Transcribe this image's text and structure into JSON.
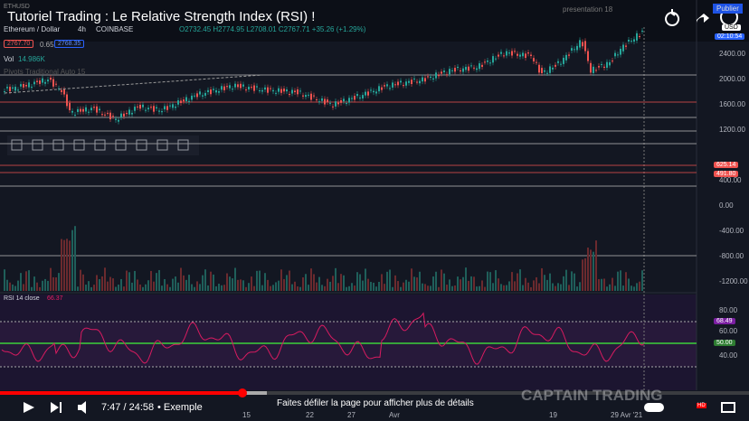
{
  "video": {
    "title": "Tutoriel Trading : Le Relative Strength Index (RSI) !",
    "header_tab": "presentation 18",
    "publish": "Publier",
    "time": "7:47 / 24:58",
    "chapter": "• Exemple",
    "scroll_hint": "Faites défiler la page pour afficher plus de détails",
    "watermark": "CAPTAIN TRADING",
    "quality": "HD"
  },
  "chart": {
    "symbol": "ETHUSD",
    "name": "Ethereum / Dollar",
    "interval": "4h",
    "exchange": "COINBASE",
    "ohlc": "O2732.45 H2774.95 L2708.01 C2767.71 +35.26 (+1.29%)",
    "bid": "2767.70",
    "spread": "0.65",
    "ask": "2768.35",
    "volume_label": "Vol",
    "volume_value": "14.986K",
    "pivots": "Pivots Traditional Auto 15",
    "currency": "USD",
    "countdown": "02:10:54",
    "price_axis": [
      "2400.00",
      "2000.00",
      "1600.00",
      "1200.00",
      "400.00",
      "0.00",
      "-400.00",
      "-800.00",
      "-1200.00"
    ],
    "price_tags": [
      "625.14",
      "491.80"
    ],
    "x_axis": [
      "15",
      "22",
      "27",
      "Avr",
      "19",
      "29 Avr '21"
    ]
  },
  "rsi": {
    "label": "RSI 14 close",
    "value": "66.37",
    "axis": [
      "80.00",
      "60.00",
      "40.00"
    ],
    "tag_value": "68.49",
    "tag_mid": "50.00"
  }
}
